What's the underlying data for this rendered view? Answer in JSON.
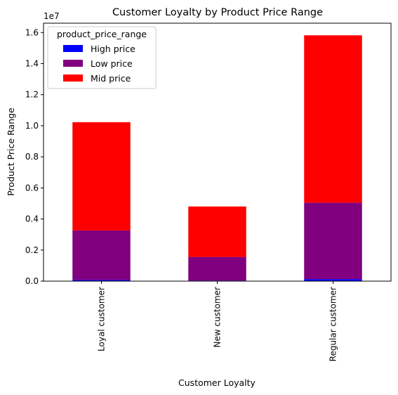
{
  "chart_data": {
    "type": "bar",
    "stacked": true,
    "title": "Customer Loyalty by Product Price Range",
    "xlabel": "Customer Loyalty",
    "ylabel": "Product Price Range",
    "y_offset_label": "1e7",
    "categories": [
      "Loyal customer",
      "New customer",
      "Regular customer"
    ],
    "series": [
      {
        "name": "High price",
        "color": "#0000ff",
        "values": [
          80000,
          35000,
          130000
        ]
      },
      {
        "name": "Low price",
        "color": "#800080",
        "values": [
          3180000,
          1520000,
          4920000
        ]
      },
      {
        "name": "Mid price",
        "color": "#ff0000",
        "values": [
          6970000,
          3250000,
          10770000
        ]
      }
    ],
    "ylim": [
      0,
      16600000
    ],
    "yticks": [
      0,
      2000000,
      4000000,
      6000000,
      8000000,
      10000000,
      12000000,
      14000000,
      16000000
    ],
    "ytick_labels": [
      "0.0",
      "0.2",
      "0.4",
      "0.6",
      "0.8",
      "1.0",
      "1.2",
      "1.4",
      "1.6"
    ],
    "legend": {
      "title": "product_price_range",
      "placement": "top-left"
    },
    "grid": false
  }
}
